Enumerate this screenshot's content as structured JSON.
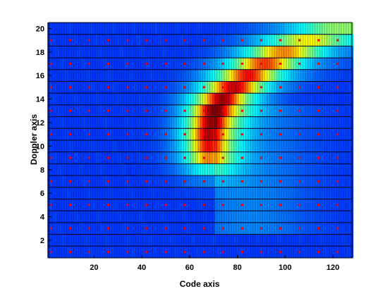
{
  "chart_data": {
    "type": "heatmap",
    "title": "",
    "xlabel": "Code axis",
    "ylabel": "Doppler axis",
    "xlim": [
      1,
      128
    ],
    "ylim": [
      0.5,
      20.5
    ],
    "x_ticks": [
      20,
      40,
      60,
      80,
      100,
      120
    ],
    "y_ticks": [
      2,
      4,
      6,
      8,
      10,
      12,
      14,
      16,
      18,
      20
    ],
    "grid": true,
    "colormap": "jet",
    "cell_size": {
      "code": 1,
      "doppler": 1
    },
    "ridge": {
      "description_points": [
        {
          "code": 68,
          "doppler": 9.5,
          "level": 0.6
        },
        {
          "code": 68,
          "doppler": 11,
          "level": 0.7
        },
        {
          "code": 70,
          "doppler": 13,
          "level": 0.75
        },
        {
          "code": 76,
          "doppler": 14.5,
          "level": 0.7
        },
        {
          "code": 82,
          "doppler": 15.5,
          "level": 0.65
        },
        {
          "code": 88,
          "doppler": 16.5,
          "level": 0.6
        },
        {
          "code": 96,
          "doppler": 17.5,
          "level": 0.55
        },
        {
          "code": 106,
          "doppler": 18.5,
          "level": 0.45
        },
        {
          "code": 118,
          "doppler": 19.5,
          "level": 0.35
        },
        {
          "code": 128,
          "doppler": 20,
          "level": 0.3
        }
      ],
      "band_width_code": 6
    },
    "sample_markers": {
      "color": "#ff0000",
      "code": [
        2,
        10,
        18,
        26,
        34,
        42,
        50,
        58,
        66,
        74,
        82,
        90,
        98,
        106,
        114,
        122
      ],
      "doppler": [
        1,
        3,
        5,
        7,
        9,
        11,
        13,
        15,
        17,
        19
      ]
    }
  }
}
